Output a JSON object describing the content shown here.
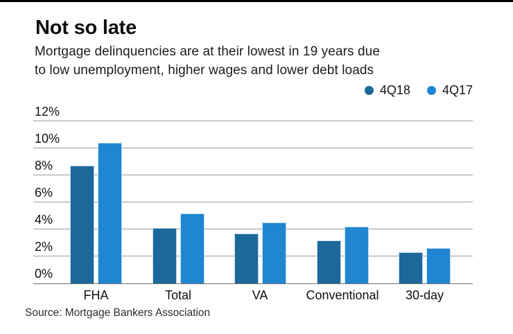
{
  "chart_data": {
    "type": "bar",
    "title": "Not so late",
    "subtitle": "Mortgage delinquencies are at their lowest in 19 years due to low unemployment, higher wages and lower debt loads",
    "subtitle_lines": [
      "Mortgage delinquencies are at their lowest in 19 years due",
      "to low unemployment, higher wages and lower debt loads"
    ],
    "categories": [
      "FHA",
      "Total",
      "VA",
      "Conventional",
      "30-day"
    ],
    "series": [
      {
        "name": "4Q18",
        "color": "#1c689a",
        "values": [
          8.7,
          4.1,
          3.7,
          3.2,
          2.3
        ]
      },
      {
        "name": "4Q17",
        "color": "#2086d1",
        "values": [
          10.4,
          5.2,
          4.5,
          4.2,
          2.6
        ]
      }
    ],
    "yticks": [
      "12%",
      "10%",
      "8%",
      "6%",
      "4%",
      "2%",
      "0%"
    ],
    "ylim": [
      0,
      12
    ],
    "grid": "horizontal",
    "legend_position": "top-right",
    "xlabel": "",
    "ylabel": "",
    "source": "Source: Mortgage Bankers Association",
    "colors": {
      "grid": "#9a9a9a",
      "axis": "#6f6f6f",
      "text": "#0f0f0f",
      "top_rule": "#000000"
    }
  }
}
